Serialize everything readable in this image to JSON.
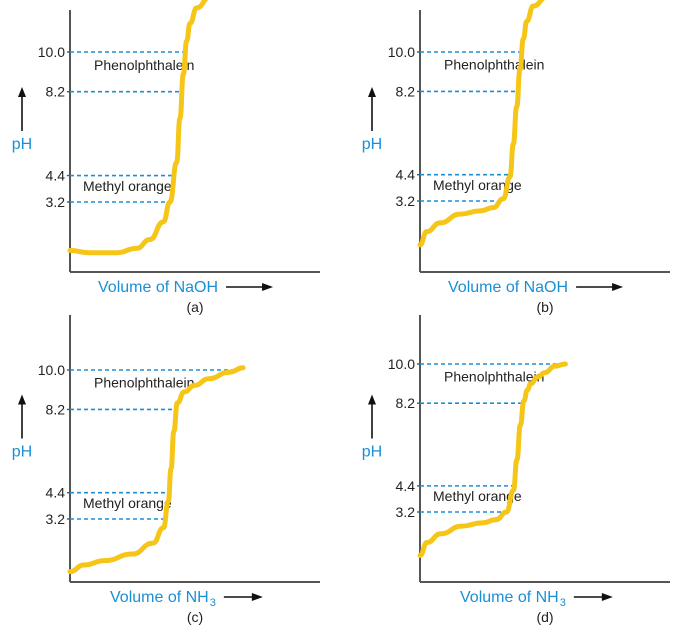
{
  "colors": {
    "curve": "#F5C518",
    "dash": "#1A8FD6",
    "axis": "#555555",
    "label_blue": "#1A8FD6",
    "text": "#222222"
  },
  "chart_data": [
    {
      "type": "line",
      "panel_label": "(a)",
      "xlabel_prefix": "Volume of NaOH",
      "xlabel_sub": "",
      "ylabel": "pH",
      "ylim": [
        0,
        14
      ],
      "ticks": [
        "10.0",
        "8.2",
        "4.4",
        "3.2"
      ],
      "tick_values": [
        10.0,
        8.2,
        4.4,
        3.2
      ],
      "indicators": [
        {
          "name": "Phenolphthalein",
          "low": 8.2,
          "high": 10.0
        },
        {
          "name": "Methyl orange",
          "low": 3.2,
          "high": 4.4
        }
      ],
      "series": [
        {
          "x": [
            0,
            3,
            7,
            10,
            12,
            14,
            15,
            16,
            16.5,
            17,
            17.5,
            18,
            19,
            21,
            24,
            27
          ],
          "y": [
            1.0,
            0.9,
            0.9,
            1.1,
            1.5,
            2.3,
            3.2,
            5.0,
            7.0,
            9.0,
            10.5,
            11.3,
            12.0,
            12.5,
            12.8,
            13.0
          ]
        }
      ]
    },
    {
      "type": "line",
      "panel_label": "(b)",
      "xlabel_prefix": "Volume of NaOH",
      "xlabel_sub": "",
      "ylabel": "pH",
      "ylim": [
        0,
        14
      ],
      "ticks": [
        "10.0",
        "8.2",
        "4.4",
        "3.2"
      ],
      "tick_values": [
        10.0,
        8.2,
        4.4,
        3.2
      ],
      "indicators": [
        {
          "name": "Phenolphthalein",
          "low": 8.2,
          "high": 10.0
        },
        {
          "name": "Methyl orange",
          "low": 3.2,
          "high": 4.4
        }
      ],
      "series": [
        {
          "x": [
            0,
            1,
            3,
            6,
            9,
            11,
            12.5,
            13.5,
            14,
            14.5,
            15,
            15.5,
            16,
            17,
            19,
            22,
            25
          ],
          "y": [
            1.2,
            1.8,
            2.2,
            2.6,
            2.75,
            2.9,
            3.3,
            4.3,
            5.8,
            7.5,
            9.2,
            10.6,
            11.4,
            12.1,
            12.5,
            12.7,
            12.8
          ]
        }
      ]
    },
    {
      "type": "line",
      "panel_label": "(c)",
      "xlabel_prefix": "Volume of NH",
      "xlabel_sub": "3",
      "ylabel": "pH",
      "ylim": [
        0,
        14
      ],
      "ticks": [
        "10.0",
        "8.2",
        "4.4",
        "3.2"
      ],
      "tick_values": [
        10.0,
        8.2,
        4.4,
        3.2
      ],
      "indicators": [
        {
          "name": "Phenolphthalein",
          "low": 8.2,
          "high": 10.0
        },
        {
          "name": "Methyl orange",
          "low": 3.2,
          "high": 4.4
        }
      ],
      "series": [
        {
          "x": [
            0,
            2,
            5,
            9,
            12,
            13.5,
            14.2,
            14.6,
            15,
            15.5,
            16.5,
            18,
            20,
            23,
            25
          ],
          "y": [
            0.8,
            1.1,
            1.3,
            1.6,
            2.1,
            2.8,
            4.0,
            5.5,
            7.2,
            8.5,
            9.0,
            9.3,
            9.6,
            9.9,
            10.1
          ]
        }
      ]
    },
    {
      "type": "line",
      "panel_label": "(d)",
      "xlabel_prefix": "Volume of NH",
      "xlabel_sub": "3",
      "ylabel": "pH",
      "ylim": [
        0,
        14
      ],
      "ticks": [
        "10.0",
        "8.2",
        "4.4",
        "3.2"
      ],
      "tick_values": [
        10.0,
        8.2,
        4.4,
        3.2
      ],
      "indicators": [
        {
          "name": "Phenolphthalein",
          "low": 8.2,
          "high": 10.0
        },
        {
          "name": "Methyl orange",
          "low": 3.2,
          "high": 4.4
        }
      ],
      "series": [
        {
          "x": [
            0,
            1,
            3,
            6,
            9,
            11,
            12.5,
            13.5,
            14,
            14.5,
            15,
            15.5,
            16,
            17,
            18,
            19.5,
            21
          ],
          "y": [
            1.2,
            1.8,
            2.2,
            2.55,
            2.7,
            2.85,
            3.2,
            4.2,
            5.6,
            7.2,
            8.3,
            8.8,
            9.1,
            9.4,
            9.6,
            9.9,
            10.0
          ]
        }
      ]
    }
  ]
}
